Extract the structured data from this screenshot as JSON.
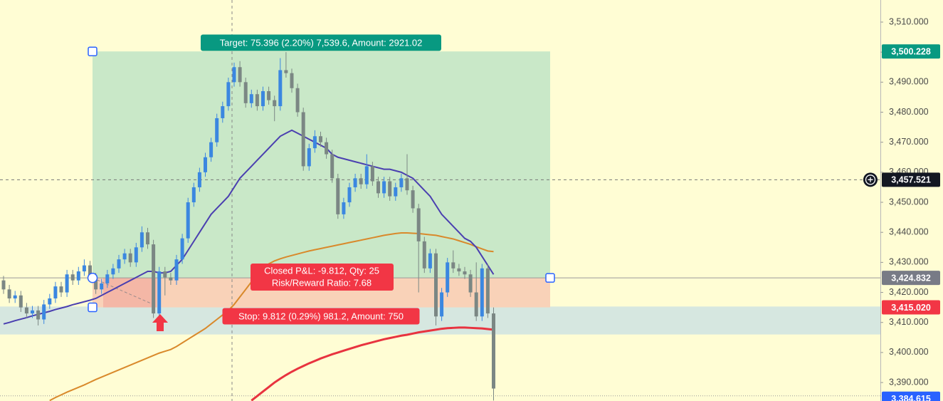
{
  "chart_data": {
    "type": "candlestick",
    "up_color": "#3b87e0",
    "down_color": "#7b8784",
    "open": [
      3424,
      3421,
      3418,
      3419,
      3415,
      3413,
      3414,
      3411,
      3416,
      3418,
      3422,
      3420,
      3426,
      3424,
      3427,
      3429,
      3425,
      3421,
      3423,
      3426,
      3428,
      3431,
      3433,
      3430,
      3435,
      3440,
      3436,
      3413,
      3427,
      3425,
      3424,
      3431,
      3438,
      3450,
      3455,
      3460,
      3465,
      3470,
      3478,
      3482,
      3490,
      3495,
      3490,
      3483,
      3486,
      3482,
      3487,
      3484,
      3482,
      3494,
      3493,
      3488,
      3480,
      3462,
      3468,
      3472,
      3470,
      3466,
      3458,
      3446,
      3450,
      3455,
      3458,
      3456,
      3462,
      3457,
      3453,
      3457,
      3452,
      3455,
      3458,
      3454,
      3448,
      3437,
      3428,
      3433,
      3412,
      3420,
      3430,
      3428,
      3427,
      3426,
      3420,
      3412,
      3428,
      3413
    ],
    "high": [
      3425.5,
      3422.5,
      3420.5,
      3420.5,
      3416.5,
      3415.5,
      3415.5,
      3417.5,
      3419.5,
      3423.5,
      3423.5,
      3427.5,
      3427.5,
      3428.5,
      3431,
      3430.5,
      3426.5,
      3424.5,
      3427.5,
      3429.5,
      3432.5,
      3434.5,
      3434.5,
      3436.5,
      3442,
      3441.5,
      3437.5,
      3428.5,
      3428.5,
      3426.5,
      3432.5,
      3439.5,
      3451.5,
      3456.5,
      3461.5,
      3466.5,
      3471.5,
      3479.5,
      3483.5,
      3491.5,
      3496.5,
      3497,
      3491.5,
      3487.5,
      3487.5,
      3488.5,
      3488.5,
      3485.5,
      3498,
      3500,
      3494.5,
      3489.5,
      3481.5,
      3469.5,
      3474,
      3473.5,
      3471.5,
      3467.5,
      3459.5,
      3451.5,
      3456.5,
      3459.5,
      3459.5,
      3466,
      3463.5,
      3458.5,
      3458.5,
      3458.5,
      3456.5,
      3459.5,
      3466,
      3455.5,
      3449.5,
      3438.5,
      3434.5,
      3434.5,
      3421.5,
      3431.5,
      3434,
      3429.5,
      3428.5,
      3427.5,
      3430,
      3429.5,
      3429.5,
      3415
    ],
    "low": [
      3419.5,
      3416.5,
      3416.5,
      3413.5,
      3411.5,
      3411.5,
      3409,
      3409.5,
      3414.5,
      3416.5,
      3418.5,
      3418.5,
      3422.5,
      3422.5,
      3425.5,
      3423.5,
      3419.5,
      3419.5,
      3421.5,
      3424.5,
      3426.5,
      3429.5,
      3428.5,
      3428.5,
      3433.5,
      3434.5,
      3411.5,
      3411.5,
      3419,
      3422.5,
      3422.5,
      3429.5,
      3436.5,
      3448.5,
      3453.5,
      3458.5,
      3463.5,
      3468.5,
      3476.5,
      3480.5,
      3488.5,
      3488.5,
      3481.5,
      3481.5,
      3480.5,
      3480.5,
      3482.5,
      3477,
      3480.5,
      3491.5,
      3486.5,
      3478.5,
      3460.5,
      3460.5,
      3466.5,
      3468.5,
      3464.5,
      3456.5,
      3444.5,
      3444.5,
      3448.5,
      3453.5,
      3454.5,
      3454.5,
      3455.5,
      3451.5,
      3451.5,
      3450.5,
      3450.5,
      3453.5,
      3452.5,
      3446.5,
      3420,
      3426.5,
      3426.5,
      3409,
      3410.5,
      3418.5,
      3426.5,
      3425.5,
      3424.5,
      3418.5,
      3410.5,
      3410.5,
      3411.5,
      3384
    ],
    "close": [
      3421,
      3418,
      3419,
      3415,
      3413,
      3414,
      3411,
      3416,
      3418,
      3422,
      3420,
      3426,
      3424,
      3427,
      3429,
      3425,
      3421,
      3423,
      3426,
      3428,
      3431,
      3433,
      3430,
      3435,
      3440,
      3436,
      3413,
      3427,
      3425,
      3424,
      3431,
      3438,
      3450,
      3455,
      3460,
      3465,
      3470,
      3478,
      3482,
      3490,
      3495,
      3490,
      3483,
      3486,
      3482,
      3487,
      3484,
      3482,
      3494,
      3493,
      3488,
      3480,
      3462,
      3468,
      3472,
      3470,
      3466,
      3458,
      3446,
      3450,
      3455,
      3458,
      3456,
      3462,
      3457,
      3453,
      3457,
      3452,
      3455,
      3458,
      3454,
      3448,
      3437,
      3428,
      3433,
      3412,
      3420,
      3430,
      3428,
      3427,
      3426,
      3420,
      3412,
      3428,
      3413,
      3388
    ],
    "series": [
      {
        "color": "#d9892b",
        "values": [
          null,
          null,
          null,
          null,
          null,
          null,
          null,
          null,
          3384,
          3385,
          3385.9,
          3386.8,
          3387.6,
          3388.4,
          3389.2,
          3390.1,
          3391,
          3391.8,
          3392.6,
          3393.4,
          3394.2,
          3395,
          3395.8,
          3396.6,
          3397.4,
          3398.2,
          3399,
          3399.8,
          3400.4,
          3401,
          3402,
          3403.2,
          3404.4,
          3405.6,
          3406.8,
          3408,
          3409.5,
          3411,
          3412.5,
          3414,
          3416,
          3418.5,
          3421,
          3423.5,
          3426,
          3428,
          3429.5,
          3430.5,
          3431.2,
          3431.8,
          3432.3,
          3432.8,
          3433.3,
          3433.8,
          3434.2,
          3434.6,
          3435,
          3435.4,
          3435.8,
          3436.2,
          3436.6,
          3437,
          3437.4,
          3437.8,
          3438.2,
          3438.6,
          3439,
          3439.3,
          3439.6,
          3439.8,
          3439.8,
          3439.7,
          3439.6,
          3439.4,
          3439.2,
          3439,
          3438.6,
          3438.2,
          3437.8,
          3437.2,
          3436.6,
          3436,
          3435.2,
          3434.5,
          3433.8,
          3433.6
        ]
      },
      {
        "color": "#e8333f",
        "values": [
          null,
          null,
          null,
          null,
          null,
          null,
          null,
          null,
          null,
          null,
          null,
          null,
          null,
          null,
          null,
          null,
          null,
          null,
          null,
          null,
          null,
          null,
          null,
          null,
          null,
          null,
          null,
          null,
          null,
          null,
          null,
          null,
          null,
          null,
          null,
          null,
          null,
          null,
          null,
          null,
          null,
          null,
          null,
          3384,
          3385.5,
          3387,
          3388.5,
          3390,
          3391.3,
          3392.5,
          3393.6,
          3394.6,
          3395.5,
          3396.4,
          3397.2,
          3398,
          3398.7,
          3399.4,
          3400,
          3400.6,
          3401.2,
          3401.8,
          3402.4,
          3402.9,
          3403.4,
          3403.9,
          3404.4,
          3404.8,
          3405.2,
          3405.6,
          3405.9,
          3406.3,
          3406.7,
          3407,
          3407.3,
          3407.6,
          3407.9,
          3408.1,
          3408.2,
          3408.3,
          3408.3,
          3408.2,
          3408.1,
          3408,
          3407.8,
          3407.6
        ]
      },
      {
        "color": "#4a3fb0",
        "values": [
          3409.5,
          3410,
          3410.6,
          3411.1,
          3411.6,
          3412.2,
          3412.7,
          3413.2,
          3413.7,
          3414.3,
          3414.8,
          3415.3,
          3415.9,
          3416.4,
          3416.9,
          3417.4,
          3418,
          3419,
          3420,
          3421,
          3422,
          3423,
          3424,
          3425,
          3426,
          3427,
          3427,
          3426.5,
          3426.5,
          3427,
          3429,
          3431,
          3434,
          3437,
          3440,
          3443,
          3446,
          3448,
          3450,
          3452,
          3455,
          3458,
          3460,
          3462,
          3464,
          3466,
          3468,
          3470,
          3472,
          3473,
          3474,
          3473,
          3472,
          3471,
          3470,
          3469,
          3468,
          3466,
          3465,
          3464.5,
          3464,
          3463.5,
          3463,
          3462.5,
          3462,
          3461.5,
          3461,
          3461,
          3460.5,
          3460,
          3459,
          3458,
          3456,
          3454,
          3452,
          3449,
          3446,
          3444,
          3442,
          3440,
          3438,
          3437,
          3435,
          3432,
          3429,
          3426
        ]
      }
    ],
    "ylim": [
      3383.85,
      3517.35
    ],
    "yticks": [
      {
        "value": 3390,
        "label": "3,390.000"
      },
      {
        "value": 3400,
        "label": "3,400.000"
      },
      {
        "value": 3410,
        "label": "3,410.000"
      },
      {
        "value": 3420,
        "label": "3,420.000"
      },
      {
        "value": 3430,
        "label": "3,430.000"
      },
      {
        "value": 3440,
        "label": "3,440.000"
      },
      {
        "value": 3450,
        "label": "3,450.000"
      },
      {
        "value": 3460,
        "label": "3,460.000"
      },
      {
        "value": 3470,
        "label": "3,470.000"
      },
      {
        "value": 3480,
        "label": "3,480.000"
      },
      {
        "value": 3490,
        "label": "3,490.000"
      },
      {
        "value": 3500,
        "label": "3,500.000"
      },
      {
        "value": 3510,
        "label": "3,510.000"
      }
    ],
    "price_labels": [
      {
        "value": 3500.228,
        "label": "3,500.228",
        "color": "#089981"
      },
      {
        "value": 3457.521,
        "label": "3,457.521",
        "color": "#131722",
        "line": "dashed"
      },
      {
        "value": 3424.832,
        "label": "3,424.832",
        "color": "#787b86",
        "line": "solid"
      },
      {
        "value": 3415.02,
        "label": "3,415.020",
        "color": "#f23645"
      },
      {
        "value": 3384.615,
        "label": "3,384.615",
        "color": "#2962ff",
        "line": "dotted"
      }
    ],
    "band": [
      3406,
      3415.3
    ],
    "annotations": {
      "target": "Target: 75.396 (2.20%) 7,539.6, Amount: 2921.02",
      "pnl": "Closed P&L: -9.812, Qty: 25",
      "risk_reward": "Risk/Reward Ratio: 7.68",
      "stop": "Stop: 9.812 (0.29%) 981.2, Amount: 750"
    }
  }
}
